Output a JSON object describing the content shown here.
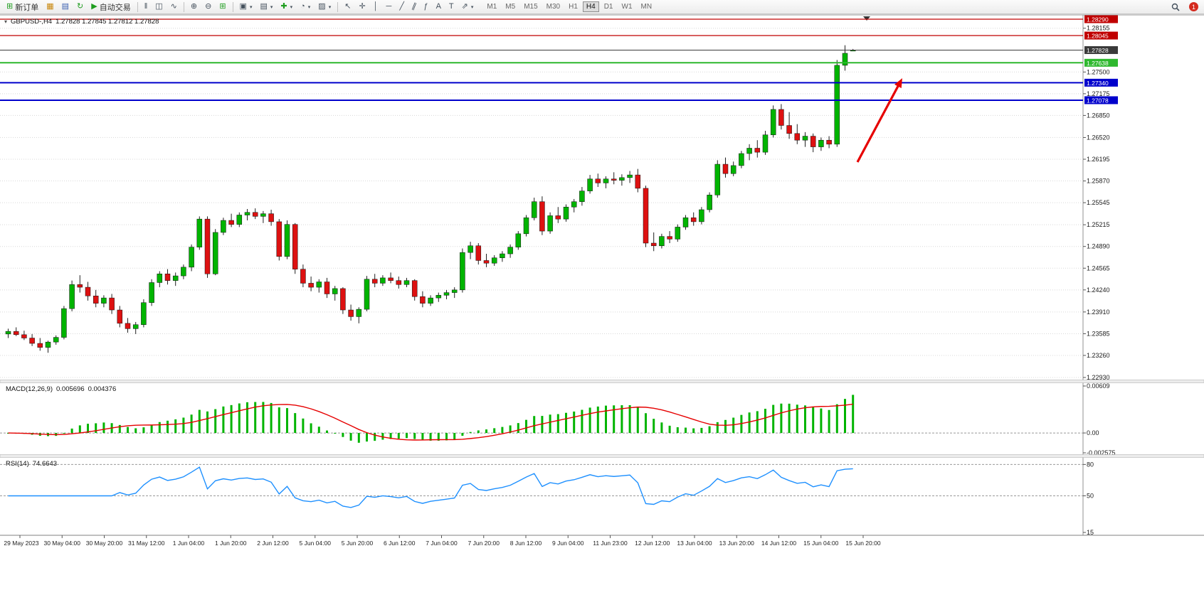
{
  "toolbar": {
    "new_order_label": "新订单",
    "auto_trading_label": "自动交易",
    "notification_count": "1",
    "active_timeframe": "H4",
    "timeframes": [
      "M1",
      "M5",
      "M15",
      "M30",
      "H1",
      "H4",
      "D1",
      "W1",
      "MN"
    ],
    "icons": {
      "new_order": "⊞",
      "chart_window": "▦",
      "market_watch": "▤",
      "refresh": "↻",
      "auto_trading": "▶",
      "bar_chart": "‖",
      "candle_chart": "◫",
      "line_chart": "∿",
      "zoom_in": "⊕",
      "zoom_out": "⊖",
      "tile_windows": "⊞",
      "new_chart": "▣",
      "profiles": "▤",
      "indicators": "✚",
      "periods": "◔",
      "templates": "▨",
      "cursor": "↖",
      "crosshair": "✛",
      "vertical_line": "│",
      "horizontal_line": "─",
      "trendline": "╱",
      "channel": "∥",
      "fibonacci": "ƒ",
      "text": "A",
      "text_label": "T",
      "arrows": "⇗",
      "dropdown": "▾"
    }
  },
  "chart": {
    "symbol_title": "GBPUSD-,H4",
    "ohlc_text": "1.27828 1.27845 1.27812 1.27828"
  },
  "chart_data": {
    "type": "candlestick",
    "symbol": "GBPUSD",
    "timeframe": "H4",
    "colors": {
      "bull": "#00b400",
      "bear": "#dd1111",
      "wick": "#222222",
      "grid": "#d8d8d8",
      "axis_text": "#1a1a1a"
    },
    "price_axis": {
      "max": 1.2829,
      "min": 1.2293,
      "ticks": [
        [
          1.28155,
          "1.28155"
        ],
        [
          1.275,
          "1.27500"
        ],
        [
          1.27175,
          "1.27175"
        ],
        [
          1.2685,
          "1.26850"
        ],
        [
          1.2652,
          "1.26520"
        ],
        [
          1.26195,
          "1.26195"
        ],
        [
          1.2587,
          "1.25870"
        ],
        [
          1.25545,
          "1.25545"
        ],
        [
          1.25215,
          "1.25215"
        ],
        [
          1.2489,
          "1.24890"
        ],
        [
          1.24565,
          "1.24565"
        ],
        [
          1.2424,
          "1.24240"
        ],
        [
          1.2391,
          "1.23910"
        ],
        [
          1.23585,
          "1.23585"
        ],
        [
          1.2326,
          "1.23260"
        ],
        [
          1.2293,
          "1.22930"
        ]
      ]
    },
    "levels": [
      {
        "value": 1.2829,
        "label": "1.28290",
        "color": "#c00000",
        "lw": 1.2
      },
      {
        "value": 1.28045,
        "label": "1.28045",
        "color": "#c00000",
        "lw": 1.2
      },
      {
        "value": 1.27828,
        "label": "1.27828",
        "color": "#3a3a3a",
        "lw": 1.0
      },
      {
        "value": 1.27638,
        "label": "1.27638",
        "color": "#2eb82e",
        "lw": 2.0
      },
      {
        "value": 1.2734,
        "label": "1.27340",
        "color": "#0000cc",
        "lw": 2.0
      },
      {
        "value": 1.27078,
        "label": "1.27078",
        "color": "#0000cc",
        "lw": 2.0
      }
    ],
    "time_labels": [
      "29 May 2023",
      "30 May 04:00",
      "30 May 20:00",
      "31 May 12:00",
      "1 Jun 04:00",
      "1 Jun 20:00",
      "2 Jun 12:00",
      "5 Jun 04:00",
      "5 Jun 20:00",
      "6 Jun 12:00",
      "7 Jun 04:00",
      "7 Jun 20:00",
      "8 Jun 12:00",
      "9 Jun 04:00",
      "11 Jun 23:00",
      "12 Jun 12:00",
      "13 Jun 04:00",
      "13 Jun 20:00",
      "14 Jun 12:00",
      "15 Jun 04:00",
      "15 Jun 20:00"
    ],
    "candles": [
      [
        1.2358,
        1.2366,
        1.2352,
        1.2362
      ],
      [
        1.2362,
        1.2368,
        1.2355,
        1.2357
      ],
      [
        1.2357,
        1.2363,
        1.2349,
        1.2352
      ],
      [
        1.2352,
        1.2358,
        1.234,
        1.2344
      ],
      [
        1.2344,
        1.2352,
        1.2333,
        1.2338
      ],
      [
        1.2338,
        1.2348,
        1.233,
        1.2346
      ],
      [
        1.2346,
        1.2356,
        1.2342,
        1.2353
      ],
      [
        1.2353,
        1.24,
        1.235,
        1.2396
      ],
      [
        1.2396,
        1.2438,
        1.2392,
        1.2432
      ],
      [
        1.2432,
        1.2446,
        1.242,
        1.2428
      ],
      [
        1.2428,
        1.2436,
        1.2408,
        1.2415
      ],
      [
        1.2415,
        1.2424,
        1.2398,
        1.2404
      ],
      [
        1.2404,
        1.2416,
        1.2398,
        1.2412
      ],
      [
        1.2412,
        1.2418,
        1.2388,
        1.2394
      ],
      [
        1.2394,
        1.24,
        1.2368,
        1.2374
      ],
      [
        1.2374,
        1.2382,
        1.236,
        1.2366
      ],
      [
        1.2366,
        1.2376,
        1.2358,
        1.2372
      ],
      [
        1.2372,
        1.241,
        1.2368,
        1.2405
      ],
      [
        1.2405,
        1.244,
        1.24,
        1.2435
      ],
      [
        1.2435,
        1.2452,
        1.2428,
        1.2448
      ],
      [
        1.2448,
        1.2455,
        1.2432,
        1.2438
      ],
      [
        1.2438,
        1.245,
        1.243,
        1.2445
      ],
      [
        1.2445,
        1.2462,
        1.244,
        1.2458
      ],
      [
        1.2458,
        1.2492,
        1.2452,
        1.2488
      ],
      [
        1.2488,
        1.2534,
        1.2484,
        1.253
      ],
      [
        1.253,
        1.2534,
        1.2442,
        1.2448
      ],
      [
        1.2448,
        1.2515,
        1.2446,
        1.251
      ],
      [
        1.251,
        1.2532,
        1.2506,
        1.2528
      ],
      [
        1.2528,
        1.2538,
        1.2518,
        1.2522
      ],
      [
        1.2522,
        1.254,
        1.2518,
        1.2536
      ],
      [
        1.2536,
        1.2545,
        1.2528,
        1.254
      ],
      [
        1.254,
        1.2546,
        1.253,
        1.2534
      ],
      [
        1.2534,
        1.2542,
        1.2524,
        1.2538
      ],
      [
        1.2538,
        1.2544,
        1.252,
        1.2526
      ],
      [
        1.2526,
        1.253,
        1.2468,
        1.2474
      ],
      [
        1.2474,
        1.2528,
        1.247,
        1.2522
      ],
      [
        1.2522,
        1.2524,
        1.2448,
        1.2455
      ],
      [
        1.2455,
        1.2462,
        1.2428,
        1.2434
      ],
      [
        1.2434,
        1.2444,
        1.2422,
        1.2428
      ],
      [
        1.2428,
        1.244,
        1.242,
        1.2436
      ],
      [
        1.2436,
        1.2442,
        1.2412,
        1.2418
      ],
      [
        1.2418,
        1.243,
        1.2408,
        1.2426
      ],
      [
        1.2426,
        1.2428,
        1.2388,
        1.2394
      ],
      [
        1.2394,
        1.2402,
        1.2378,
        1.2384
      ],
      [
        1.2384,
        1.2398,
        1.2374,
        1.2395
      ],
      [
        1.2395,
        1.2445,
        1.2392,
        1.244
      ],
      [
        1.244,
        1.2448,
        1.2428,
        1.2434
      ],
      [
        1.2434,
        1.2446,
        1.243,
        1.2442
      ],
      [
        1.2442,
        1.245,
        1.2434,
        1.2438
      ],
      [
        1.2438,
        1.2444,
        1.2426,
        1.2432
      ],
      [
        1.2432,
        1.2442,
        1.2428,
        1.2438
      ],
      [
        1.2438,
        1.244,
        1.2408,
        1.2414
      ],
      [
        1.2414,
        1.2422,
        1.2398,
        1.2404
      ],
      [
        1.2404,
        1.2416,
        1.24,
        1.2412
      ],
      [
        1.2412,
        1.242,
        1.2406,
        1.2416
      ],
      [
        1.2416,
        1.2424,
        1.241,
        1.242
      ],
      [
        1.242,
        1.2428,
        1.2412,
        1.2424
      ],
      [
        1.2424,
        1.2486,
        1.242,
        1.248
      ],
      [
        1.248,
        1.2496,
        1.247,
        1.249
      ],
      [
        1.249,
        1.2494,
        1.2462,
        1.2468
      ],
      [
        1.2468,
        1.2478,
        1.2458,
        1.2464
      ],
      [
        1.2464,
        1.2476,
        1.246,
        1.2472
      ],
      [
        1.2472,
        1.2482,
        1.2466,
        1.2478
      ],
      [
        1.2478,
        1.2492,
        1.2472,
        1.2488
      ],
      [
        1.2488,
        1.2512,
        1.2484,
        1.2508
      ],
      [
        1.2508,
        1.2536,
        1.2504,
        1.2532
      ],
      [
        1.2532,
        1.2562,
        1.2528,
        1.2556
      ],
      [
        1.2556,
        1.2564,
        1.2506,
        1.2512
      ],
      [
        1.2512,
        1.254,
        1.2508,
        1.2535
      ],
      [
        1.2535,
        1.2548,
        1.2524,
        1.253
      ],
      [
        1.253,
        1.2552,
        1.2526,
        1.2548
      ],
      [
        1.2548,
        1.256,
        1.254,
        1.2556
      ],
      [
        1.2556,
        1.2578,
        1.255,
        1.2572
      ],
      [
        1.2572,
        1.2596,
        1.2568,
        1.259
      ],
      [
        1.259,
        1.2598,
        1.2578,
        1.2584
      ],
      [
        1.2584,
        1.2594,
        1.2576,
        1.259
      ],
      [
        1.259,
        1.26,
        1.2582,
        1.2588
      ],
      [
        1.2588,
        1.2597,
        1.258,
        1.2592
      ],
      [
        1.2592,
        1.2602,
        1.2584,
        1.2596
      ],
      [
        1.2596,
        1.2605,
        1.257,
        1.2576
      ],
      [
        1.2576,
        1.258,
        1.2488,
        1.2494
      ],
      [
        1.2494,
        1.251,
        1.2482,
        1.249
      ],
      [
        1.249,
        1.2508,
        1.2486,
        1.2504
      ],
      [
        1.2504,
        1.2512,
        1.2494,
        1.25
      ],
      [
        1.25,
        1.2522,
        1.2496,
        1.2518
      ],
      [
        1.2518,
        1.2536,
        1.2514,
        1.2532
      ],
      [
        1.2532,
        1.254,
        1.252,
        1.2526
      ],
      [
        1.2526,
        1.2548,
        1.2522,
        1.2544
      ],
      [
        1.2544,
        1.257,
        1.254,
        1.2566
      ],
      [
        1.2566,
        1.2618,
        1.2562,
        1.2612
      ],
      [
        1.2612,
        1.2622,
        1.2592,
        1.2598
      ],
      [
        1.2598,
        1.2616,
        1.2594,
        1.261
      ],
      [
        1.261,
        1.2632,
        1.2606,
        1.2628
      ],
      [
        1.2628,
        1.2642,
        1.2618,
        1.2636
      ],
      [
        1.2636,
        1.2648,
        1.2622,
        1.263
      ],
      [
        1.263,
        1.2662,
        1.2626,
        1.2656
      ],
      [
        1.2656,
        1.27,
        1.2652,
        1.2694
      ],
      [
        1.2694,
        1.2702,
        1.2664,
        1.267
      ],
      [
        1.267,
        1.269,
        1.265,
        1.2658
      ],
      [
        1.2658,
        1.2672,
        1.2642,
        1.2648
      ],
      [
        1.2648,
        1.266,
        1.2638,
        1.2654
      ],
      [
        1.2654,
        1.2658,
        1.263,
        1.2638
      ],
      [
        1.2638,
        1.2652,
        1.2632,
        1.2648
      ],
      [
        1.2648,
        1.2654,
        1.2636,
        1.2642
      ],
      [
        1.2642,
        1.2768,
        1.2638,
        1.276
      ],
      [
        1.276,
        1.279,
        1.2752,
        1.2778
      ],
      [
        1.27828,
        1.27845,
        1.27812,
        1.27828
      ]
    ],
    "macd": {
      "label": "MACD(12,26,9)",
      "value_main": "0.005696",
      "value_signal": "0.004376",
      "fast": 12,
      "slow": 26,
      "signal": 9,
      "scale_max": 0.00609,
      "scale_min": -0.002575,
      "scale_labels": [
        [
          "0.00609",
          0.00609
        ],
        [
          "0.00",
          0
        ],
        [
          "-0.002575",
          -0.002575
        ]
      ],
      "histogram_color": "#00b400",
      "signal_color": "#e60000"
    },
    "rsi": {
      "label": "RSI(14)",
      "value": "74.6643",
      "period": 14,
      "range": [
        15,
        85
      ],
      "dash_levels": [
        80,
        50
      ],
      "scale_labels": [
        [
          "80",
          80
        ],
        [
          "50",
          50
        ],
        [
          "15",
          15
        ]
      ],
      "line_color": "#1e90ff"
    },
    "arrow": {
      "from": [
        1205,
        208
      ],
      "to": [
        1268,
        90
      ],
      "color": "#e60000"
    }
  }
}
